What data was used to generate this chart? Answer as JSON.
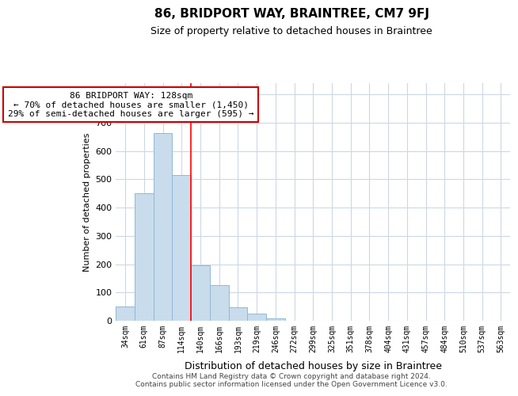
{
  "title": "86, BRIDPORT WAY, BRAINTREE, CM7 9FJ",
  "subtitle": "Size of property relative to detached houses in Braintree",
  "bar_labels": [
    "34sqm",
    "61sqm",
    "87sqm",
    "114sqm",
    "140sqm",
    "166sqm",
    "193sqm",
    "219sqm",
    "246sqm",
    "272sqm",
    "299sqm",
    "325sqm",
    "351sqm",
    "378sqm",
    "404sqm",
    "431sqm",
    "457sqm",
    "484sqm",
    "510sqm",
    "537sqm",
    "563sqm"
  ],
  "bar_values": [
    50,
    450,
    665,
    515,
    195,
    127,
    48,
    25,
    8,
    0,
    0,
    0,
    0,
    0,
    0,
    0,
    0,
    0,
    0,
    0,
    0
  ],
  "bar_color": "#c8dcec",
  "bar_edge_color": "#90b8d4",
  "red_line_x": 3.5,
  "annotation_title": "86 BRIDPORT WAY: 128sqm",
  "annotation_line1": "← 70% of detached houses are smaller (1,450)",
  "annotation_line2": "29% of semi-detached houses are larger (595) →",
  "annotation_box_color": "#ffffff",
  "annotation_box_edge": "#cc0000",
  "ylabel": "Number of detached properties",
  "xlabel": "Distribution of detached houses by size in Braintree",
  "ylim": [
    0,
    840
  ],
  "yticks": [
    0,
    100,
    200,
    300,
    400,
    500,
    600,
    700,
    800
  ],
  "footer_line1": "Contains HM Land Registry data © Crown copyright and database right 2024.",
  "footer_line2": "Contains public sector information licensed under the Open Government Licence v3.0.",
  "background_color": "#ffffff",
  "grid_color": "#ccd8e4"
}
